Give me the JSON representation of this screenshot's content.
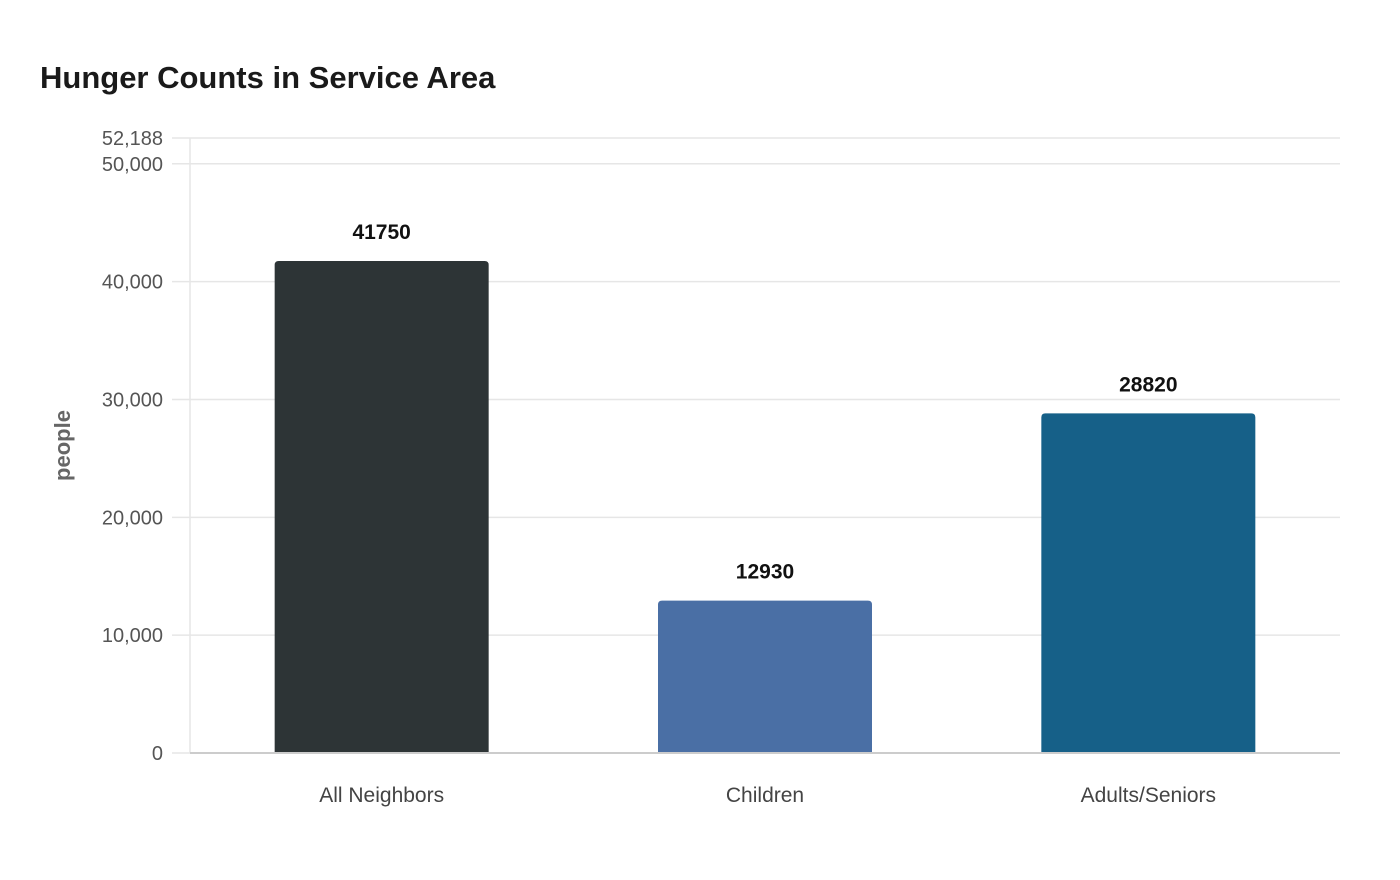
{
  "chart_data": {
    "type": "bar",
    "title": "Hunger Counts in Service Area",
    "xlabel": "",
    "ylabel": "people",
    "categories": [
      "All Neighbors",
      "Children",
      "Adults/Seniors"
    ],
    "values": [
      41750,
      12930,
      28820
    ],
    "value_labels": [
      "41750",
      "12930",
      "28820"
    ],
    "colors": [
      "#2d3436",
      "#4a6fa5",
      "#166088"
    ],
    "ylim": [
      0,
      52188
    ],
    "yticks": [
      0,
      10000,
      20000,
      30000,
      40000,
      50000,
      52188
    ],
    "ytick_labels": [
      "0",
      "10,000",
      "20,000",
      "30,000",
      "40,000",
      "50,000",
      "52,188"
    ],
    "grid": true,
    "legend": "none"
  }
}
